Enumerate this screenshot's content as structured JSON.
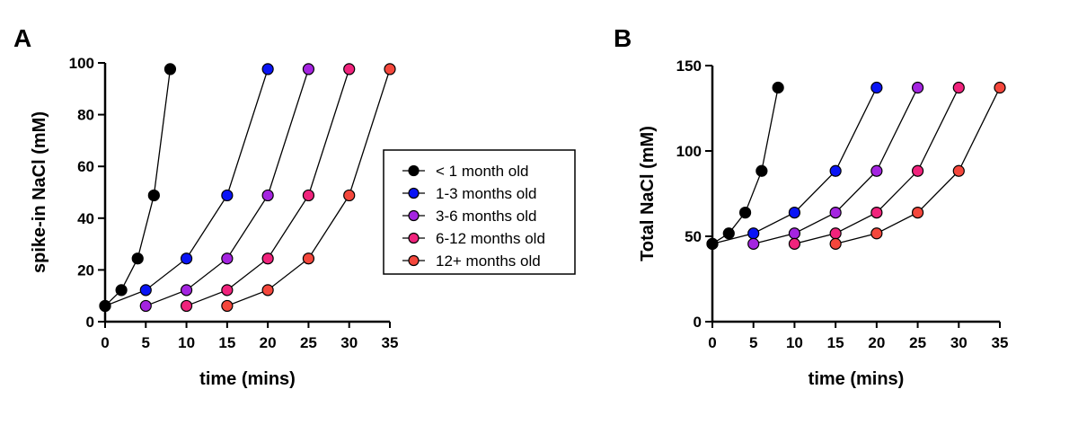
{
  "chart_data": [
    {
      "type": "line",
      "panel_label": "A",
      "xlabel": "time (mins)",
      "ylabel": "spike-in NaCl (mM)",
      "xlim": [
        0,
        35
      ],
      "ylim": [
        0,
        100
      ],
      "xticks": [
        0,
        5,
        10,
        15,
        20,
        25,
        30,
        35
      ],
      "yticks": [
        0,
        20,
        40,
        60,
        80,
        100
      ],
      "grid": false,
      "series": [
        {
          "name": "1-3 months old",
          "color": "#0a14f5",
          "x": [
            0,
            5,
            10,
            15,
            20
          ],
          "y": [
            6.1,
            12.2,
            24.4,
            48.8,
            97.6
          ]
        },
        {
          "name": "3-6 months old",
          "color": "#a424e0",
          "x": [
            5,
            10,
            15,
            20,
            25
          ],
          "y": [
            6.1,
            12.2,
            24.4,
            48.8,
            97.6
          ]
        },
        {
          "name": "6-12 months old",
          "color": "#f0237c",
          "x": [
            10,
            15,
            20,
            25,
            30
          ],
          "y": [
            6.1,
            12.2,
            24.4,
            48.8,
            97.6
          ]
        },
        {
          "name": "12+ months old",
          "color": "#f4473c",
          "x": [
            15,
            20,
            25,
            30,
            35
          ],
          "y": [
            6.1,
            12.2,
            24.4,
            48.8,
            97.6
          ]
        },
        {
          "name": "< 1 month old",
          "color": "#000000",
          "x": [
            0,
            2,
            4,
            6,
            8
          ],
          "y": [
            6.1,
            12.2,
            24.4,
            48.8,
            97.6
          ]
        }
      ]
    },
    {
      "type": "line",
      "panel_label": "B",
      "xlabel": "time (mins)",
      "ylabel": "Total NaCl (mM)",
      "xlim": [
        0,
        35
      ],
      "ylim": [
        0,
        150
      ],
      "xticks": [
        0,
        5,
        10,
        15,
        20,
        25,
        30,
        35
      ],
      "yticks": [
        0,
        50,
        100,
        150
      ],
      "grid": false,
      "series": [
        {
          "name": "1-3 months old",
          "color": "#0a14f5",
          "x": [
            0,
            5,
            10,
            15,
            20
          ],
          "y": [
            45.6,
            51.7,
            63.9,
            88.3,
            137.1
          ]
        },
        {
          "name": "3-6 months old",
          "color": "#a424e0",
          "x": [
            5,
            10,
            15,
            20,
            25
          ],
          "y": [
            45.6,
            51.7,
            63.9,
            88.3,
            137.1
          ]
        },
        {
          "name": "6-12 months old",
          "color": "#f0237c",
          "x": [
            10,
            15,
            20,
            25,
            30
          ],
          "y": [
            45.6,
            51.7,
            63.9,
            88.3,
            137.1
          ]
        },
        {
          "name": "12+ months old",
          "color": "#f4473c",
          "x": [
            15,
            20,
            25,
            30,
            35
          ],
          "y": [
            45.6,
            51.7,
            63.9,
            88.3,
            137.1
          ]
        },
        {
          "name": "< 1 month old",
          "color": "#000000",
          "x": [
            0,
            2,
            4,
            6,
            8
          ],
          "y": [
            45.6,
            51.7,
            63.9,
            88.3,
            137.1
          ]
        }
      ]
    }
  ],
  "legend": {
    "placement": "between panels",
    "entries": [
      {
        "label": "< 1 month old",
        "color": "#000000"
      },
      {
        "label": "1-3 months old",
        "color": "#0a14f5"
      },
      {
        "label": "3-6 months old",
        "color": "#a424e0"
      },
      {
        "label": "6-12 months old",
        "color": "#f0237c"
      },
      {
        "label": "12+ months old",
        "color": "#f4473c"
      }
    ]
  }
}
